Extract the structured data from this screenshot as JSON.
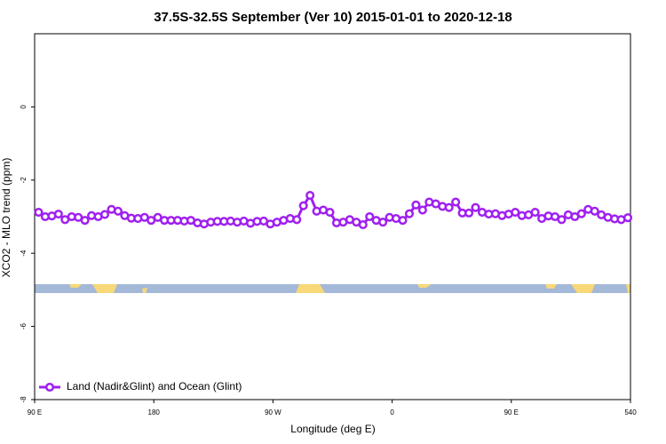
{
  "chart_data": {
    "type": "line",
    "title": "37.5S-32.5S September (Ver 10)   2015-01-01 to 2020-12-18",
    "x_label": "Longitude (deg E)",
    "y_label": "XCO2 - MLO trend (ppm)",
    "x": [
      93,
      98,
      103,
      108,
      113,
      118,
      123,
      128,
      133,
      138,
      143,
      148,
      153,
      158,
      163,
      168,
      173,
      178,
      183,
      188,
      193,
      198,
      203,
      208,
      213,
      218,
      223,
      228,
      233,
      238,
      243,
      248,
      253,
      258,
      263,
      268,
      273,
      278,
      283,
      288,
      293,
      298,
      303,
      308,
      313,
      318,
      323,
      328,
      333,
      338,
      343,
      348,
      353,
      358,
      363,
      368,
      373,
      378,
      383,
      388,
      393,
      398,
      403,
      408,
      413,
      418,
      423,
      428,
      433,
      438,
      443,
      448,
      453,
      458,
      463,
      468,
      473,
      478,
      483,
      488,
      493,
      498,
      503,
      508,
      513,
      518,
      523,
      528,
      533,
      538
    ],
    "series": [
      {
        "name": "Land (Nadir&Glint) and Ocean (Glint)",
        "color": "#a020f0",
        "values": [
          -2.88,
          -3.0,
          -2.98,
          -2.93,
          -3.08,
          -3.0,
          -3.02,
          -3.1,
          -2.97,
          -3.0,
          -2.94,
          -2.8,
          -2.85,
          -2.97,
          -3.04,
          -3.05,
          -3.02,
          -3.1,
          -3.02,
          -3.1,
          -3.1,
          -3.1,
          -3.12,
          -3.1,
          -3.17,
          -3.2,
          -3.15,
          -3.13,
          -3.13,
          -3.12,
          -3.15,
          -3.12,
          -3.18,
          -3.13,
          -3.12,
          -3.2,
          -3.15,
          -3.1,
          -3.05,
          -3.08,
          -2.7,
          -2.42,
          -2.85,
          -2.82,
          -2.88,
          -3.17,
          -3.15,
          -3.08,
          -3.15,
          -3.22,
          -3.0,
          -3.1,
          -3.15,
          -3.02,
          -3.05,
          -3.1,
          -2.92,
          -2.68,
          -2.82,
          -2.6,
          -2.65,
          -2.72,
          -2.75,
          -2.6,
          -2.9,
          -2.9,
          -2.75,
          -2.88,
          -2.93,
          -2.92,
          -2.97,
          -2.93,
          -2.88,
          -2.97,
          -2.95,
          -2.88,
          -3.05,
          -2.98,
          -3.0,
          -3.08,
          -2.95,
          -3.0,
          -2.92,
          -2.8,
          -2.85,
          -2.95,
          -3.02,
          -3.06,
          -3.08,
          -3.03
        ]
      }
    ],
    "xlim": [
      90,
      540
    ],
    "xticks": [
      {
        "value": 90,
        "label": "90 E"
      },
      180,
      {
        "value": 270,
        "label": "90 W"
      },
      {
        "value": 360,
        "label": "0"
      },
      {
        "value": 450,
        "label": "90 E"
      },
      540
    ],
    "ylim": [
      -8,
      2
    ],
    "yticks": [
      0,
      -2,
      -4,
      -6,
      -8
    ],
    "legend": "bottomleft"
  }
}
